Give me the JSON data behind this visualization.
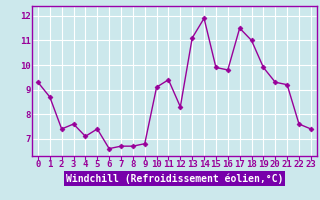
{
  "x": [
    0,
    1,
    2,
    3,
    4,
    5,
    6,
    7,
    8,
    9,
    10,
    11,
    12,
    13,
    14,
    15,
    16,
    17,
    18,
    19,
    20,
    21,
    22,
    23
  ],
  "y": [
    9.3,
    8.7,
    7.4,
    7.6,
    7.1,
    7.4,
    6.6,
    6.7,
    6.7,
    6.8,
    9.1,
    9.4,
    8.3,
    11.1,
    11.9,
    9.9,
    9.8,
    11.5,
    11.0,
    9.9,
    9.3,
    9.2,
    7.6,
    7.4
  ],
  "line_color": "#990099",
  "marker": "D",
  "marker_size": 2.5,
  "bg_color": "#cce8ec",
  "grid_color": "#ffffff",
  "xlabel": "Windchill (Refroidissement éolien,°C)",
  "xlabel_bg": "#7700aa",
  "xlabel_fg": "#ffffff",
  "xlabel_fontsize": 7,
  "ytick_labels": [
    "7",
    "8",
    "9",
    "10",
    "11",
    "12"
  ],
  "yticks": [
    7,
    8,
    9,
    10,
    11,
    12
  ],
  "xticks": [
    0,
    1,
    2,
    3,
    4,
    5,
    6,
    7,
    8,
    9,
    10,
    11,
    12,
    13,
    14,
    15,
    16,
    17,
    18,
    19,
    20,
    21,
    22,
    23
  ],
  "ylim": [
    6.3,
    12.4
  ],
  "xlim": [
    -0.5,
    23.5
  ],
  "tick_fontsize": 6.5,
  "linewidth": 1.0,
  "spine_color": "#9900aa"
}
